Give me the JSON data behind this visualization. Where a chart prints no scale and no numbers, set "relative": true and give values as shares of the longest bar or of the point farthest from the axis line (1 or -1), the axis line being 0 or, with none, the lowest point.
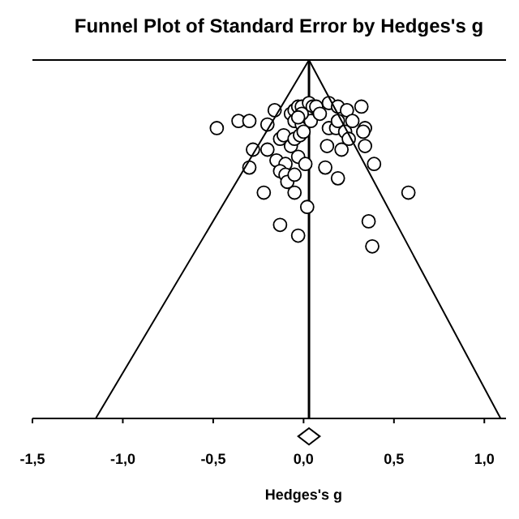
{
  "chart_data": {
    "type": "scatter",
    "title": "Funnel Plot of Standard Error by Hedges's g",
    "xlabel": "Hedges's g",
    "relative": true,
    "grid": false,
    "xlim": [
      -1.5,
      1.12
    ],
    "xticks": [
      {
        "value": -1.5,
        "label": "-1,5"
      },
      {
        "value": -1,
        "label": "-1,0"
      },
      {
        "value": -0.5,
        "label": "-0,5"
      },
      {
        "value": 0,
        "label": "0,0"
      },
      {
        "value": 0.5,
        "label": "0,5"
      },
      {
        "value": 1,
        "label": "1,0"
      }
    ],
    "ref_lines": [
      {
        "axis": "x",
        "value": 0.03,
        "color": "#000000"
      }
    ],
    "series": [
      {
        "color": "#000000",
        "marker": "circle",
        "x": [
          -0.48,
          -0.36,
          -0.3,
          -0.2,
          -0.16,
          -0.28,
          -0.3,
          -0.2,
          -0.22,
          -0.13,
          -0.11,
          -0.15,
          -0.1,
          -0.13,
          -0.1,
          -0.09,
          -0.05,
          -0.05,
          -0.07,
          -0.05,
          -0.02,
          -0.03,
          0.01,
          0.02,
          -0.13,
          -0.03,
          -0.07,
          -0.05,
          -0.03,
          -0.01,
          0.03,
          0.05,
          -0.05,
          -0.01,
          0.02,
          0.04,
          0.07,
          0.09,
          0.14,
          0.19,
          0.24,
          0.32,
          0.14,
          0.18,
          0.19,
          0.23,
          0.27,
          0.25,
          0.34,
          0.33,
          0.21,
          0.34,
          0.13,
          0.12,
          0.19,
          0.39,
          0.58,
          0.36,
          0.38,
          -0.01,
          -0.03,
          0.0
        ],
        "values": [
          0.81,
          0.83,
          0.83,
          0.82,
          0.86,
          0.75,
          0.7,
          0.75,
          0.63,
          0.78,
          0.79,
          0.72,
          0.71,
          0.69,
          0.68,
          0.66,
          0.68,
          0.63,
          0.76,
          0.78,
          0.79,
          0.73,
          0.71,
          0.59,
          0.54,
          0.51,
          0.85,
          0.86,
          0.87,
          0.87,
          0.88,
          0.87,
          0.83,
          0.82,
          0.84,
          0.83,
          0.87,
          0.85,
          0.88,
          0.87,
          0.86,
          0.87,
          0.81,
          0.81,
          0.83,
          0.8,
          0.83,
          0.78,
          0.81,
          0.8,
          0.75,
          0.76,
          0.76,
          0.7,
          0.67,
          0.71,
          0.63,
          0.55,
          0.48,
          0.85,
          0.84,
          0.8
        ]
      },
      {
        "type": "line",
        "color": "#000000",
        "x": [
          -1.15,
          0.03,
          1.09
        ],
        "values": [
          0,
          1,
          0
        ]
      },
      {
        "color": "#000000",
        "marker": "diamond",
        "x": [
          0.03
        ],
        "values": [
          -0.05
        ]
      }
    ]
  }
}
